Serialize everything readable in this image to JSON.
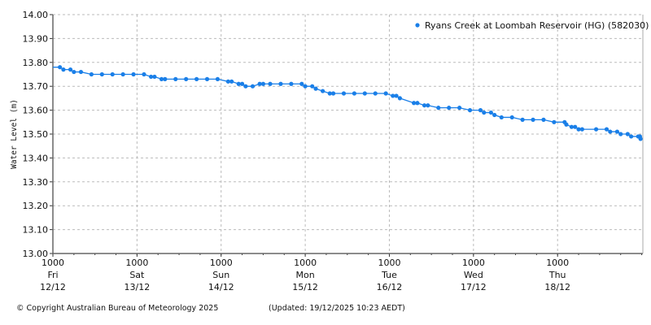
{
  "chart_data": {
    "type": "line",
    "title": "",
    "xlabel": "",
    "ylabel": "Water Level (m)",
    "ylim": [
      13.0,
      14.0
    ],
    "xlim": [
      "2025-12-12 10:00",
      "2025-12-19 10:20"
    ],
    "grid": true,
    "legend_position": "top-right",
    "y_ticks": [
      "13.00",
      "13.10",
      "13.20",
      "13.30",
      "13.40",
      "13.50",
      "13.60",
      "13.70",
      "13.80",
      "13.90",
      "14.00"
    ],
    "x_ticks": [
      {
        "time": "2025-12-12 10:00",
        "l1": "1000",
        "l2": "Fri",
        "l3": "12/12"
      },
      {
        "time": "2025-12-13 10:00",
        "l1": "1000",
        "l2": "Sat",
        "l3": "13/12"
      },
      {
        "time": "2025-12-14 10:00",
        "l1": "1000",
        "l2": "Sun",
        "l3": "14/12"
      },
      {
        "time": "2025-12-15 10:00",
        "l1": "1000",
        "l2": "Mon",
        "l3": "15/12"
      },
      {
        "time": "2025-12-16 10:00",
        "l1": "1000",
        "l2": "Tue",
        "l3": "16/12"
      },
      {
        "time": "2025-12-17 10:00",
        "l1": "1000",
        "l2": "Wed",
        "l3": "17/12"
      },
      {
        "time": "2025-12-18 10:00",
        "l1": "1000",
        "l2": "Thu",
        "l3": "18/12"
      }
    ],
    "series": [
      {
        "name": "Ryans Creek at Loombah Reservoir (HG) (582030)",
        "color": "#1a7fe8",
        "points": [
          [
            "2025-12-12 12:00",
            13.78
          ],
          [
            "2025-12-12 13:00",
            13.77
          ],
          [
            "2025-12-12 15:00",
            13.77
          ],
          [
            "2025-12-12 16:00",
            13.76
          ],
          [
            "2025-12-12 18:00",
            13.76
          ],
          [
            "2025-12-12 21:00",
            13.75
          ],
          [
            "2025-12-13 00:00",
            13.75
          ],
          [
            "2025-12-13 03:00",
            13.75
          ],
          [
            "2025-12-13 06:00",
            13.75
          ],
          [
            "2025-12-13 09:00",
            13.75
          ],
          [
            "2025-12-13 12:00",
            13.75
          ],
          [
            "2025-12-13 14:00",
            13.74
          ],
          [
            "2025-12-13 15:00",
            13.74
          ],
          [
            "2025-12-13 17:00",
            13.73
          ],
          [
            "2025-12-13 18:00",
            13.73
          ],
          [
            "2025-12-13 21:00",
            13.73
          ],
          [
            "2025-12-14 00:00",
            13.73
          ],
          [
            "2025-12-14 03:00",
            13.73
          ],
          [
            "2025-12-14 06:00",
            13.73
          ],
          [
            "2025-12-14 09:00",
            13.73
          ],
          [
            "2025-12-14 12:00",
            13.72
          ],
          [
            "2025-12-14 13:00",
            13.72
          ],
          [
            "2025-12-14 15:00",
            13.71
          ],
          [
            "2025-12-14 16:00",
            13.71
          ],
          [
            "2025-12-14 17:00",
            13.7
          ],
          [
            "2025-12-14 19:00",
            13.7
          ],
          [
            "2025-12-14 21:00",
            13.71
          ],
          [
            "2025-12-14 22:00",
            13.71
          ],
          [
            "2025-12-15 00:00",
            13.71
          ],
          [
            "2025-12-15 03:00",
            13.71
          ],
          [
            "2025-12-15 06:00",
            13.71
          ],
          [
            "2025-12-15 09:00",
            13.71
          ],
          [
            "2025-12-15 10:00",
            13.7
          ],
          [
            "2025-12-15 12:00",
            13.7
          ],
          [
            "2025-12-15 13:00",
            13.69
          ],
          [
            "2025-12-15 15:00",
            13.68
          ],
          [
            "2025-12-15 17:00",
            13.67
          ],
          [
            "2025-12-15 18:00",
            13.67
          ],
          [
            "2025-12-15 21:00",
            13.67
          ],
          [
            "2025-12-16 00:00",
            13.67
          ],
          [
            "2025-12-16 03:00",
            13.67
          ],
          [
            "2025-12-16 06:00",
            13.67
          ],
          [
            "2025-12-16 09:00",
            13.67
          ],
          [
            "2025-12-16 11:00",
            13.66
          ],
          [
            "2025-12-16 12:00",
            13.66
          ],
          [
            "2025-12-16 13:00",
            13.65
          ],
          [
            "2025-12-16 17:00",
            13.63
          ],
          [
            "2025-12-16 18:00",
            13.63
          ],
          [
            "2025-12-16 20:00",
            13.62
          ],
          [
            "2025-12-16 21:00",
            13.62
          ],
          [
            "2025-12-17 00:00",
            13.61
          ],
          [
            "2025-12-17 03:00",
            13.61
          ],
          [
            "2025-12-17 06:00",
            13.61
          ],
          [
            "2025-12-17 09:00",
            13.6
          ],
          [
            "2025-12-17 12:00",
            13.6
          ],
          [
            "2025-12-17 13:00",
            13.59
          ],
          [
            "2025-12-17 15:00",
            13.59
          ],
          [
            "2025-12-17 16:00",
            13.58
          ],
          [
            "2025-12-17 18:00",
            13.57
          ],
          [
            "2025-12-17 21:00",
            13.57
          ],
          [
            "2025-12-18 00:00",
            13.56
          ],
          [
            "2025-12-18 03:00",
            13.56
          ],
          [
            "2025-12-18 06:00",
            13.56
          ],
          [
            "2025-12-18 09:00",
            13.55
          ],
          [
            "2025-12-18 12:00",
            13.55
          ],
          [
            "2025-12-18 12:30",
            13.54
          ],
          [
            "2025-12-18 14:00",
            13.53
          ],
          [
            "2025-12-18 15:00",
            13.53
          ],
          [
            "2025-12-18 16:00",
            13.52
          ],
          [
            "2025-12-18 17:00",
            13.52
          ],
          [
            "2025-12-18 21:00",
            13.52
          ],
          [
            "2025-12-19 00:00",
            13.52
          ],
          [
            "2025-12-19 01:00",
            13.51
          ],
          [
            "2025-12-19 03:00",
            13.51
          ],
          [
            "2025-12-19 04:00",
            13.5
          ],
          [
            "2025-12-19 06:00",
            13.5
          ],
          [
            "2025-12-19 07:00",
            13.49
          ],
          [
            "2025-12-19 09:00",
            13.49
          ],
          [
            "2025-12-19 09:30",
            13.49
          ],
          [
            "2025-12-19 09:40",
            13.48
          ]
        ]
      }
    ]
  },
  "footer": {
    "copyright": "© Copyright Australian Bureau of Meteorology 2025",
    "updated": "(Updated: 19/12/2025 10:23 AEDT)"
  }
}
